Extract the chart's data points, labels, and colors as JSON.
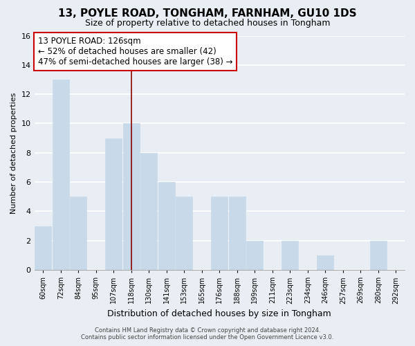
{
  "title": "13, POYLE ROAD, TONGHAM, FARNHAM, GU10 1DS",
  "subtitle": "Size of property relative to detached houses in Tongham",
  "xlabel": "Distribution of detached houses by size in Tongham",
  "ylabel": "Number of detached properties",
  "bin_labels": [
    "60sqm",
    "72sqm",
    "84sqm",
    "95sqm",
    "107sqm",
    "118sqm",
    "130sqm",
    "141sqm",
    "153sqm",
    "165sqm",
    "176sqm",
    "188sqm",
    "199sqm",
    "211sqm",
    "223sqm",
    "234sqm",
    "246sqm",
    "257sqm",
    "269sqm",
    "280sqm",
    "292sqm"
  ],
  "bar_heights": [
    3,
    13,
    5,
    0,
    9,
    10,
    8,
    6,
    5,
    0,
    5,
    5,
    2,
    0,
    2,
    0,
    1,
    0,
    0,
    2,
    0
  ],
  "bar_color": "#c8daea",
  "highlight_bar_index": 5,
  "highlight_line_color": "#8b0000",
  "ylim": [
    0,
    16
  ],
  "yticks": [
    0,
    2,
    4,
    6,
    8,
    10,
    12,
    14,
    16
  ],
  "annotation_title": "13 POYLE ROAD: 126sqm",
  "annotation_line1": "← 52% of detached houses are smaller (42)",
  "annotation_line2": "47% of semi-detached houses are larger (38) →",
  "annotation_box_color": "#ffffff",
  "annotation_box_edge_color": "#cc0000",
  "background_color": "#e8eef4",
  "grid_color": "#ffffff",
  "footer_line1": "Contains HM Land Registry data © Crown copyright and database right 2024.",
  "footer_line2": "Contains public sector information licensed under the Open Government Licence v3.0."
}
